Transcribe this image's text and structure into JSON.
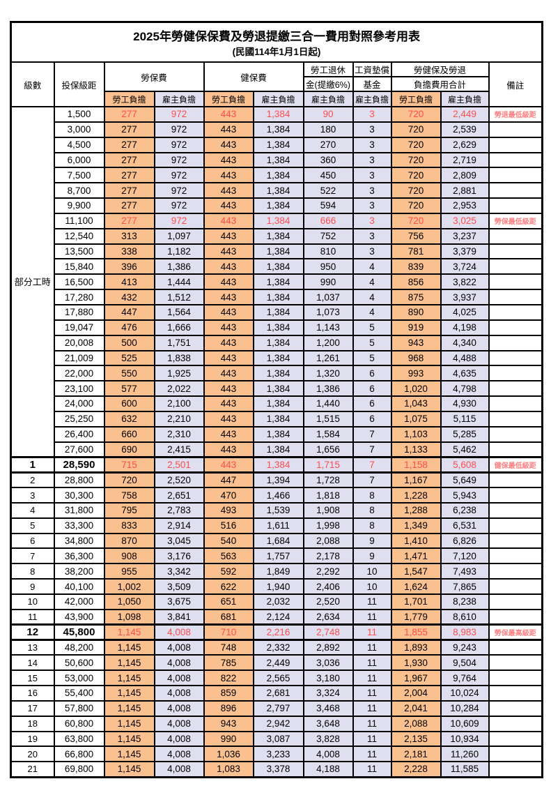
{
  "title": "2025年勞健保保費及勞退提繳三合一費用對照參考用表",
  "subtitle": "(民國114年1月1日起)",
  "header": {
    "level": "級數",
    "salary_bracket": "投保級距",
    "labor_insurance": "勞保費",
    "health_insurance": "健保費",
    "pension_line1": "勞工退休",
    "pension_line2": "金(提繳6%)",
    "wage_fund_line1": "工資墊償",
    "wage_fund_line2": "基金",
    "total_line1": "勞健保及勞退",
    "total_line2": "負擔費用合計",
    "remark": "備註",
    "employee_share": "勞工負擔",
    "employer_share": "雇主負擔"
  },
  "part_time_label": "部分工時",
  "part_time_rowspan": 23,
  "colors": {
    "employee_bg": "#FAC090",
    "employer_bg": "#E0DFF0",
    "highlight_red": "#FF4D4D",
    "remark_red": "#FF8080"
  },
  "rows": [
    {
      "level": null,
      "salary": "1,500",
      "v": [
        "277",
        "972",
        "443",
        "1,384",
        "90",
        "3",
        "720",
        "2,449"
      ],
      "remark": "勞退最低級距",
      "red": true,
      "key": false
    },
    {
      "level": null,
      "salary": "3,000",
      "v": [
        "277",
        "972",
        "443",
        "1,384",
        "180",
        "3",
        "720",
        "2,539"
      ],
      "remark": "",
      "red": false,
      "key": false
    },
    {
      "level": null,
      "salary": "4,500",
      "v": [
        "277",
        "972",
        "443",
        "1,384",
        "270",
        "3",
        "720",
        "2,629"
      ],
      "remark": "",
      "red": false,
      "key": false
    },
    {
      "level": null,
      "salary": "6,000",
      "v": [
        "277",
        "972",
        "443",
        "1,384",
        "360",
        "3",
        "720",
        "2,719"
      ],
      "remark": "",
      "red": false,
      "key": false
    },
    {
      "level": null,
      "salary": "7,500",
      "v": [
        "277",
        "972",
        "443",
        "1,384",
        "450",
        "3",
        "720",
        "2,809"
      ],
      "remark": "",
      "red": false,
      "key": false
    },
    {
      "level": null,
      "salary": "8,700",
      "v": [
        "277",
        "972",
        "443",
        "1,384",
        "522",
        "3",
        "720",
        "2,881"
      ],
      "remark": "",
      "red": false,
      "key": false
    },
    {
      "level": null,
      "salary": "9,900",
      "v": [
        "277",
        "972",
        "443",
        "1,384",
        "594",
        "3",
        "720",
        "2,953"
      ],
      "remark": "",
      "red": false,
      "key": false
    },
    {
      "level": null,
      "salary": "11,100",
      "v": [
        "277",
        "972",
        "443",
        "1,384",
        "666",
        "3",
        "720",
        "3,025"
      ],
      "remark": "勞保最低級距",
      "red": true,
      "key": false
    },
    {
      "level": null,
      "salary": "12,540",
      "v": [
        "313",
        "1,097",
        "443",
        "1,384",
        "752",
        "3",
        "756",
        "3,237"
      ],
      "remark": "",
      "red": false,
      "key": false
    },
    {
      "level": null,
      "salary": "13,500",
      "v": [
        "338",
        "1,182",
        "443",
        "1,384",
        "810",
        "3",
        "781",
        "3,379"
      ],
      "remark": "",
      "red": false,
      "key": false
    },
    {
      "level": null,
      "salary": "15,840",
      "v": [
        "396",
        "1,386",
        "443",
        "1,384",
        "950",
        "4",
        "839",
        "3,724"
      ],
      "remark": "",
      "red": false,
      "key": false
    },
    {
      "level": null,
      "salary": "16,500",
      "v": [
        "413",
        "1,444",
        "443",
        "1,384",
        "990",
        "4",
        "856",
        "3,822"
      ],
      "remark": "",
      "red": false,
      "key": false
    },
    {
      "level": null,
      "salary": "17,280",
      "v": [
        "432",
        "1,512",
        "443",
        "1,384",
        "1,037",
        "4",
        "875",
        "3,937"
      ],
      "remark": "",
      "red": false,
      "key": false
    },
    {
      "level": null,
      "salary": "17,880",
      "v": [
        "447",
        "1,564",
        "443",
        "1,384",
        "1,073",
        "4",
        "890",
        "4,025"
      ],
      "remark": "",
      "red": false,
      "key": false
    },
    {
      "level": null,
      "salary": "19,047",
      "v": [
        "476",
        "1,666",
        "443",
        "1,384",
        "1,143",
        "5",
        "919",
        "4,198"
      ],
      "remark": "",
      "red": false,
      "key": false
    },
    {
      "level": null,
      "salary": "20,008",
      "v": [
        "500",
        "1,751",
        "443",
        "1,384",
        "1,200",
        "5",
        "943",
        "4,340"
      ],
      "remark": "",
      "red": false,
      "key": false
    },
    {
      "level": null,
      "salary": "21,009",
      "v": [
        "525",
        "1,838",
        "443",
        "1,384",
        "1,261",
        "5",
        "968",
        "4,488"
      ],
      "remark": "",
      "red": false,
      "key": false
    },
    {
      "level": null,
      "salary": "22,000",
      "v": [
        "550",
        "1,925",
        "443",
        "1,384",
        "1,320",
        "6",
        "993",
        "4,635"
      ],
      "remark": "",
      "red": false,
      "key": false
    },
    {
      "level": null,
      "salary": "23,100",
      "v": [
        "577",
        "2,022",
        "443",
        "1,384",
        "1,386",
        "6",
        "1,020",
        "4,798"
      ],
      "remark": "",
      "red": false,
      "key": false
    },
    {
      "level": null,
      "salary": "24,000",
      "v": [
        "600",
        "2,100",
        "443",
        "1,384",
        "1,440",
        "6",
        "1,043",
        "4,930"
      ],
      "remark": "",
      "red": false,
      "key": false
    },
    {
      "level": null,
      "salary": "25,250",
      "v": [
        "632",
        "2,210",
        "443",
        "1,384",
        "1,515",
        "6",
        "1,075",
        "5,115"
      ],
      "remark": "",
      "red": false,
      "key": false
    },
    {
      "level": null,
      "salary": "26,400",
      "v": [
        "660",
        "2,310",
        "443",
        "1,384",
        "1,584",
        "7",
        "1,103",
        "5,285"
      ],
      "remark": "",
      "red": false,
      "key": false
    },
    {
      "level": null,
      "salary": "27,600",
      "v": [
        "690",
        "2,415",
        "443",
        "1,384",
        "1,656",
        "7",
        "1,133",
        "5,462"
      ],
      "remark": "",
      "red": false,
      "key": false
    },
    {
      "level": "1",
      "salary": "28,590",
      "v": [
        "715",
        "2,501",
        "443",
        "1,384",
        "1,715",
        "7",
        "1,158",
        "5,608"
      ],
      "remark": "健保最低級距",
      "red": true,
      "key": true
    },
    {
      "level": "2",
      "salary": "28,800",
      "v": [
        "720",
        "2,520",
        "447",
        "1,394",
        "1,728",
        "7",
        "1,167",
        "5,649"
      ],
      "remark": "",
      "red": false,
      "key": false
    },
    {
      "level": "3",
      "salary": "30,300",
      "v": [
        "758",
        "2,651",
        "470",
        "1,466",
        "1,818",
        "8",
        "1,228",
        "5,943"
      ],
      "remark": "",
      "red": false,
      "key": false
    },
    {
      "level": "4",
      "salary": "31,800",
      "v": [
        "795",
        "2,783",
        "493",
        "1,539",
        "1,908",
        "8",
        "1,288",
        "6,238"
      ],
      "remark": "",
      "red": false,
      "key": false
    },
    {
      "level": "5",
      "salary": "33,300",
      "v": [
        "833",
        "2,914",
        "516",
        "1,611",
        "1,998",
        "8",
        "1,349",
        "6,531"
      ],
      "remark": "",
      "red": false,
      "key": false
    },
    {
      "level": "6",
      "salary": "34,800",
      "v": [
        "870",
        "3,045",
        "540",
        "1,684",
        "2,088",
        "9",
        "1,410",
        "6,826"
      ],
      "remark": "",
      "red": false,
      "key": false
    },
    {
      "level": "7",
      "salary": "36,300",
      "v": [
        "908",
        "3,176",
        "563",
        "1,757",
        "2,178",
        "9",
        "1,471",
        "7,120"
      ],
      "remark": "",
      "red": false,
      "key": false
    },
    {
      "level": "8",
      "salary": "38,200",
      "v": [
        "955",
        "3,342",
        "592",
        "1,849",
        "2,292",
        "10",
        "1,547",
        "7,493"
      ],
      "remark": "",
      "red": false,
      "key": false
    },
    {
      "level": "9",
      "salary": "40,100",
      "v": [
        "1,002",
        "3,509",
        "622",
        "1,940",
        "2,406",
        "10",
        "1,624",
        "7,865"
      ],
      "remark": "",
      "red": false,
      "key": false
    },
    {
      "level": "10",
      "salary": "42,000",
      "v": [
        "1,050",
        "3,675",
        "651",
        "2,032",
        "2,520",
        "11",
        "1,701",
        "8,238"
      ],
      "remark": "",
      "red": false,
      "key": false
    },
    {
      "level": "11",
      "salary": "43,900",
      "v": [
        "1,098",
        "3,841",
        "681",
        "2,124",
        "2,634",
        "11",
        "1,779",
        "8,610"
      ],
      "remark": "",
      "red": false,
      "key": false
    },
    {
      "level": "12",
      "salary": "45,800",
      "v": [
        "1,145",
        "4,008",
        "710",
        "2,216",
        "2,748",
        "11",
        "1,855",
        "8,983"
      ],
      "remark": "勞保最高級距",
      "red": true,
      "key": true
    },
    {
      "level": "13",
      "salary": "48,200",
      "v": [
        "1,145",
        "4,008",
        "748",
        "2,332",
        "2,892",
        "11",
        "1,893",
        "9,243"
      ],
      "remark": "",
      "red": false,
      "key": false
    },
    {
      "level": "14",
      "salary": "50,600",
      "v": [
        "1,145",
        "4,008",
        "785",
        "2,449",
        "3,036",
        "11",
        "1,930",
        "9,504"
      ],
      "remark": "",
      "red": false,
      "key": false
    },
    {
      "level": "15",
      "salary": "53,000",
      "v": [
        "1,145",
        "4,008",
        "822",
        "2,565",
        "3,180",
        "11",
        "1,967",
        "9,764"
      ],
      "remark": "",
      "red": false,
      "key": false
    },
    {
      "level": "16",
      "salary": "55,400",
      "v": [
        "1,145",
        "4,008",
        "859",
        "2,681",
        "3,324",
        "11",
        "2,004",
        "10,024"
      ],
      "remark": "",
      "red": false,
      "key": false
    },
    {
      "level": "17",
      "salary": "57,800",
      "v": [
        "1,145",
        "4,008",
        "896",
        "2,797",
        "3,468",
        "11",
        "2,041",
        "10,284"
      ],
      "remark": "",
      "red": false,
      "key": false
    },
    {
      "level": "18",
      "salary": "60,800",
      "v": [
        "1,145",
        "4,008",
        "943",
        "2,942",
        "3,648",
        "11",
        "2,088",
        "10,609"
      ],
      "remark": "",
      "red": false,
      "key": false
    },
    {
      "level": "19",
      "salary": "63,800",
      "v": [
        "1,145",
        "4,008",
        "990",
        "3,087",
        "3,828",
        "11",
        "2,135",
        "10,934"
      ],
      "remark": "",
      "red": false,
      "key": false
    },
    {
      "level": "20",
      "salary": "66,800",
      "v": [
        "1,145",
        "4,008",
        "1,036",
        "3,233",
        "4,008",
        "11",
        "2,181",
        "11,260"
      ],
      "remark": "",
      "red": false,
      "key": false
    },
    {
      "level": "21",
      "salary": "69,800",
      "v": [
        "1,145",
        "4,008",
        "1,083",
        "3,378",
        "4,188",
        "11",
        "2,228",
        "11,585"
      ],
      "remark": "",
      "red": false,
      "key": false
    }
  ]
}
